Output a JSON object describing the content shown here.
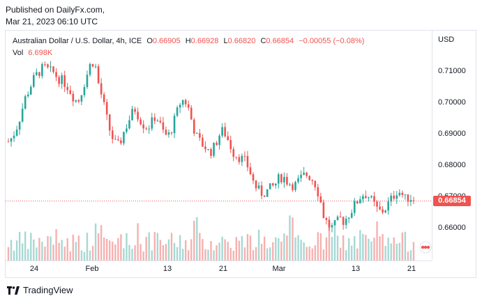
{
  "header": {
    "publisher": "Published on DailyFx.com,",
    "datetime": "Mar 21, 2023 06:10 UTC"
  },
  "legend": {
    "title": "Australian Dollar / U.S. Dollar, 4h, ICE",
    "open_label": "O",
    "open": "0.66905",
    "high_label": "H",
    "high": "0.66928",
    "low_label": "L",
    "low": "0.66820",
    "close_label": "C",
    "close": "0.66854",
    "change": "−0.00055 (−0.08%)",
    "vol_label": "Vol",
    "vol": "6.698K"
  },
  "price_axis": {
    "currency": "USD",
    "ticks": [
      "0.71000",
      "0.70000",
      "0.69000",
      "0.68000",
      "0.67000",
      "0.66000"
    ],
    "last_price": "0.66854"
  },
  "time_axis": {
    "ticks": [
      "24",
      "Feb",
      "13",
      "21",
      "Mar",
      "13",
      "21"
    ]
  },
  "footer": {
    "brand": "TradingView"
  },
  "colors": {
    "up": "#26a69a",
    "down": "#ef5350",
    "up_volume": "#a7d8d3",
    "down_volume": "#f5b1b0",
    "last_price_line": "#ef5350"
  },
  "icons": {
    "brand_logo": "tradingview-logo-icon",
    "indicator": "colored-dots-icon"
  },
  "chart_data": {
    "type": "candlestick",
    "instrument": "Australian Dollar / U.S. Dollar",
    "interval": "4h",
    "y_range": [
      0.6545,
      0.7165
    ],
    "last_price": 0.66854,
    "x_labels": [
      "24",
      "Feb",
      "13",
      "21",
      "Mar",
      "13",
      "21"
    ],
    "close_path": [
      0.6875,
      0.689,
      0.692,
      0.696,
      0.701,
      0.704,
      0.707,
      0.709,
      0.7105,
      0.711,
      0.71,
      0.7095,
      0.708,
      0.707,
      0.706,
      0.704,
      0.7015,
      0.7,
      0.704,
      0.708,
      0.712,
      0.7135,
      0.706,
      0.701,
      0.695,
      0.69,
      0.687,
      0.686,
      0.69,
      0.693,
      0.696,
      0.698,
      0.695,
      0.693,
      0.692,
      0.6935,
      0.696,
      0.693,
      0.69,
      0.689,
      0.692,
      0.696,
      0.7,
      0.701,
      0.698,
      0.693,
      0.689,
      0.687,
      0.686,
      0.684,
      0.685,
      0.688,
      0.691,
      0.69,
      0.687,
      0.684,
      0.683,
      0.682,
      0.681,
      0.678,
      0.674,
      0.672,
      0.671,
      0.6715,
      0.6725,
      0.6735,
      0.6755,
      0.6765,
      0.675,
      0.674,
      0.6735,
      0.675,
      0.6765,
      0.677,
      0.676,
      0.674,
      0.67,
      0.664,
      0.661,
      0.66,
      0.661,
      0.663,
      0.662,
      0.664,
      0.666,
      0.668,
      0.67,
      0.671,
      0.67,
      0.668,
      0.666,
      0.665,
      0.666,
      0.668,
      0.67,
      0.672,
      0.671,
      0.669,
      0.67,
      0.6685
    ]
  }
}
